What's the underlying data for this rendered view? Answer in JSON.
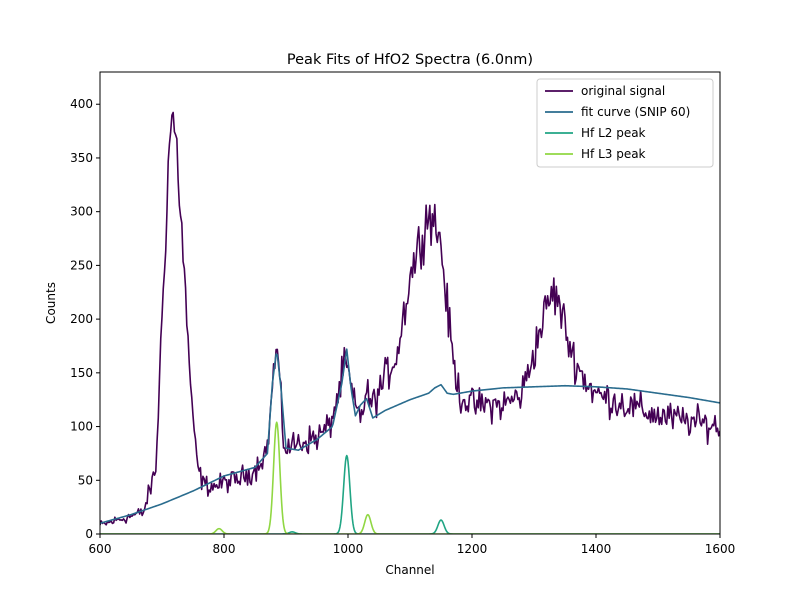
{
  "chart_data": {
    "type": "line",
    "title": "Peak Fits of HfO2 Spectra (6.0nm)",
    "xlabel": "Channel",
    "ylabel": "Counts",
    "xlim": [
      600,
      1600
    ],
    "ylim": [
      0,
      430
    ],
    "xticks": [
      600,
      800,
      1000,
      1200,
      1400,
      1600
    ],
    "yticks": [
      0,
      50,
      100,
      150,
      200,
      250,
      300,
      350,
      400
    ],
    "grid": false,
    "legend_position": "top-right",
    "series": [
      {
        "name": "original signal",
        "color": "#440154",
        "noise": 14,
        "x": [
          600,
          640,
          670,
          690,
          700,
          710,
          715,
          720,
          725,
          730,
          740,
          750,
          760,
          770,
          780,
          790,
          800,
          820,
          850,
          870,
          880,
          885,
          890,
          895,
          900,
          920,
          950,
          970,
          985,
          995,
          1000,
          1010,
          1020,
          1030,
          1040,
          1060,
          1080,
          1100,
          1120,
          1130,
          1140,
          1150,
          1160,
          1170,
          1180,
          1200,
          1250,
          1280,
          1300,
          1320,
          1330,
          1340,
          1360,
          1380,
          1400,
          1450,
          1500,
          1550,
          1600
        ],
        "y": [
          8,
          15,
          20,
          60,
          200,
          340,
          390,
          380,
          350,
          300,
          200,
          100,
          55,
          45,
          45,
          45,
          48,
          50,
          60,
          80,
          150,
          175,
          140,
          90,
          80,
          85,
          90,
          100,
          130,
          160,
          150,
          120,
          110,
          130,
          120,
          145,
          170,
          240,
          280,
          300,
          290,
          270,
          210,
          160,
          130,
          120,
          120,
          130,
          170,
          210,
          225,
          215,
          170,
          145,
          130,
          120,
          110,
          105,
          100
        ]
      },
      {
        "name": "fit curve (SNIP 60)",
        "color": "#2a6c8e",
        "x": [
          600,
          650,
          700,
          750,
          800,
          850,
          870,
          878,
          885,
          892,
          900,
          920,
          950,
          975,
          990,
          998,
          1005,
          1012,
          1020,
          1030,
          1040,
          1060,
          1100,
          1130,
          1140,
          1150,
          1160,
          1170,
          1200,
          1250,
          1300,
          1350,
          1400,
          1450,
          1500,
          1550,
          1600
        ],
        "y": [
          10,
          18,
          28,
          40,
          54,
          62,
          75,
          140,
          172,
          135,
          80,
          78,
          88,
          100,
          140,
          172,
          135,
          110,
          120,
          126,
          108,
          115,
          125,
          131,
          136,
          139,
          131,
          130,
          133,
          136,
          137,
          138,
          137,
          135,
          131,
          127,
          122
        ]
      },
      {
        "name": "Hf L2 peak",
        "color": "#21a584",
        "baseline": 0,
        "peaks": [
          {
            "center": 998,
            "height": 73,
            "width": 5
          },
          {
            "center": 1150,
            "height": 13,
            "width": 5
          },
          {
            "center": 910,
            "height": 2,
            "width": 5
          }
        ]
      },
      {
        "name": "Hf L3 peak",
        "color": "#90d743",
        "baseline": 0,
        "peaks": [
          {
            "center": 885,
            "height": 104,
            "width": 5
          },
          {
            "center": 1032,
            "height": 18,
            "width": 5
          },
          {
            "center": 792,
            "height": 5,
            "width": 5
          }
        ]
      }
    ]
  }
}
